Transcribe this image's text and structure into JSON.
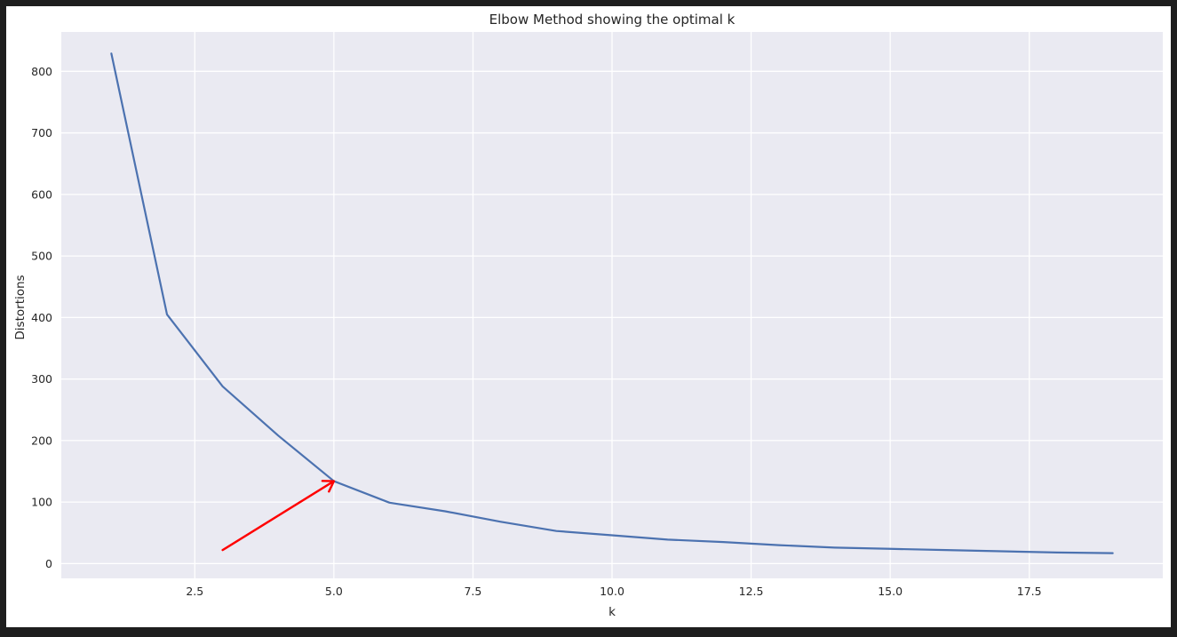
{
  "chart_data": {
    "type": "line",
    "title": "Elbow Method showing the optimal k",
    "xlabel": "k",
    "ylabel": "Distortions",
    "xlim": [
      0.1,
      19.9
    ],
    "ylim": [
      -24,
      864
    ],
    "xticks": [
      2.5,
      5.0,
      7.5,
      10.0,
      12.5,
      15.0,
      17.5
    ],
    "xtick_labels": [
      "2.5",
      "5.0",
      "7.5",
      "10.0",
      "12.5",
      "15.0",
      "17.5"
    ],
    "yticks": [
      0,
      100,
      200,
      300,
      400,
      500,
      600,
      700,
      800
    ],
    "ytick_labels": [
      "0",
      "100",
      "200",
      "300",
      "400",
      "500",
      "600",
      "700",
      "800"
    ],
    "grid": true,
    "series": [
      {
        "x": [
          1,
          2,
          3,
          4,
          5,
          6,
          7,
          8,
          9,
          10,
          11,
          12,
          13,
          14,
          15,
          16,
          17,
          18,
          19
        ],
        "values": [
          829,
          405,
          288,
          208,
          134,
          99,
          85,
          68,
          53,
          46,
          39,
          35,
          30,
          26,
          24,
          22,
          20,
          18,
          17
        ],
        "color": "#4c72b0"
      }
    ],
    "annotation": {
      "type": "arrow",
      "from": [
        3.0,
        22
      ],
      "to": [
        5.0,
        134
      ],
      "color": "#ff0000"
    },
    "colors": {
      "plot_background": "#eaeaf2",
      "grid": "#ffffff",
      "text": "#262626"
    }
  }
}
